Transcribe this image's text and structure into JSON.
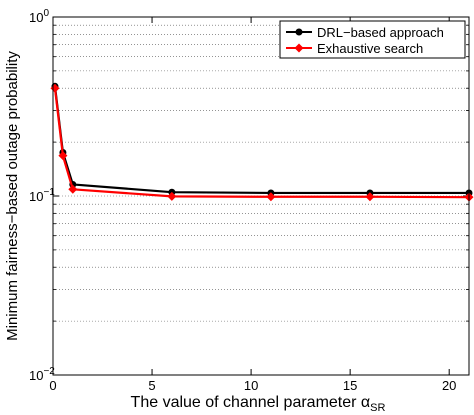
{
  "chart_data": {
    "type": "line",
    "title": "",
    "xlabel_main": "The value of channel parameter α",
    "xlabel_sub": "SR",
    "ylabel": "Minimum fairness−based outage probability",
    "xlim": [
      0,
      21
    ],
    "ylim": [
      0.01,
      1
    ],
    "yscale": "log",
    "grid": "y-major-and-minor-dotted",
    "legend_position": "top-right",
    "x_ticks": [
      0,
      5,
      10,
      15,
      20
    ],
    "x_tick_labels": [
      "0",
      "5",
      "10",
      "15",
      "20"
    ],
    "y_ticks": [
      0.01,
      0.1,
      1
    ],
    "y_tick_labels": [
      {
        "base": "10",
        "exp": "−2"
      },
      {
        "base": "10",
        "exp": "−1"
      },
      {
        "base": "10",
        "exp": "0"
      }
    ],
    "series": [
      {
        "name": "DRL−based approach",
        "color": "#000000",
        "marker": "circle",
        "x": [
          0.1,
          0.5,
          1,
          6,
          11,
          16,
          21
        ],
        "y": [
          0.41,
          0.175,
          0.116,
          0.105,
          0.104,
          0.104,
          0.104
        ]
      },
      {
        "name": "Exhaustive search",
        "color": "#ff0000",
        "marker": "diamond",
        "x": [
          0.1,
          0.5,
          1,
          6,
          11,
          16,
          21
        ],
        "y": [
          0.4,
          0.168,
          0.109,
          0.0995,
          0.099,
          0.099,
          0.0985
        ]
      }
    ]
  }
}
